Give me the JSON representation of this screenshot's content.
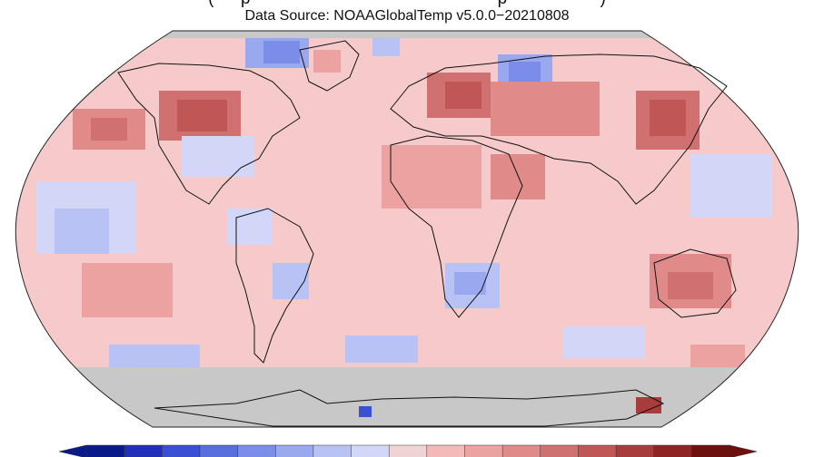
{
  "header": {
    "title_partial": "(   ---   p   ---   ---   ---   ---   ---   ---   ---   ---   ---   ---   ---   p   ---   ---   ---   ---   )",
    "subtitle": "Data Source: NOAAGlobalTemp v5.0.0−20210808"
  },
  "map": {
    "projection": "robinson",
    "background_color": "#ffffff",
    "ocean_base_color": "#f6caca",
    "land_outline_color": "#111111",
    "missing_data_color": "#c8c8c8"
  },
  "legend": {
    "colorbar_colors": [
      "#0a1a8a",
      "#2230b8",
      "#3a4fd2",
      "#5a6fde",
      "#7b8de8",
      "#9aa8ef",
      "#b9c2f5",
      "#d3d7f7",
      "#f0d4d4",
      "#f4baba",
      "#eda2a2",
      "#e08a8a",
      "#d07070",
      "#c05656",
      "#a83c3c",
      "#8e2424",
      "#6e1010"
    ],
    "has_low_extension": true,
    "has_high_extension": true
  }
}
